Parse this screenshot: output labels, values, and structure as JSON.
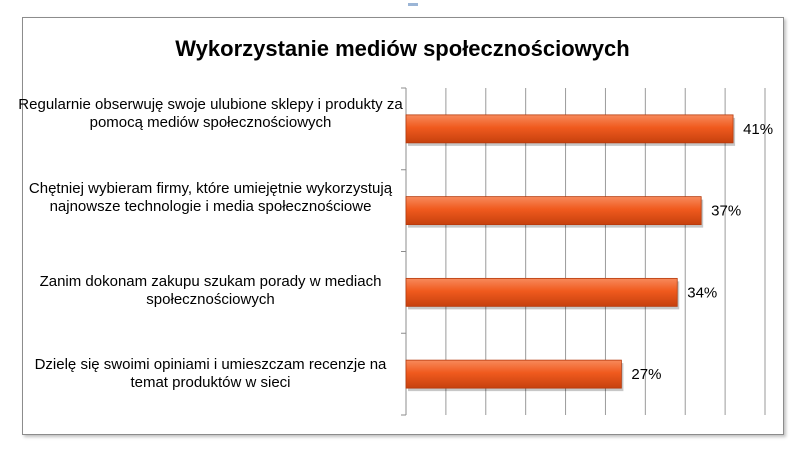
{
  "chart_data": {
    "type": "bar",
    "orientation": "horizontal",
    "title": "Wykorzystanie mediów społecznościowych",
    "categories": [
      "Regularnie obserwuję swoje ulubione sklepy i produkty za pomocą mediów społecznościowych",
      "Chętniej wybieram firmy, które umiejętnie wykorzystują najnowsze technologie i media społecznościowe",
      "Zanim dokonam zakupu szukam porady w mediach społecznościowych",
      "Dzielę się swoimi opiniami i umieszczam recenzje na temat produktów w sieci"
    ],
    "values": [
      41,
      37,
      34,
      27
    ],
    "value_labels": [
      "41%",
      "37%",
      "34%",
      "27%"
    ],
    "xlim": [
      0,
      45
    ],
    "grid": true,
    "legend": "none",
    "bar_color": "#f05a1e"
  }
}
